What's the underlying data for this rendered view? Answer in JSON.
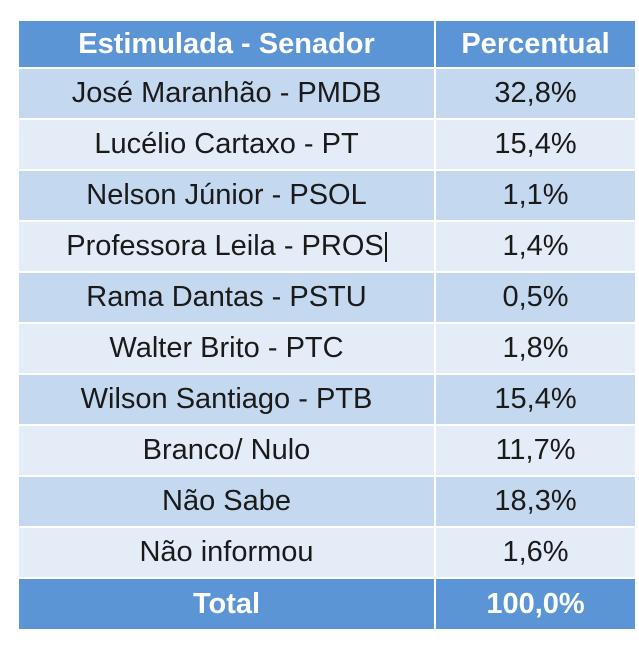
{
  "chart_data": {
    "type": "table",
    "columns": [
      "Estimulada - Senador",
      "Percentual"
    ],
    "rows": [
      {
        "candidate": "José Maranhão - PMDB",
        "percent": "32,8%",
        "value": 32.8
      },
      {
        "candidate": "Lucélio Cartaxo - PT",
        "percent": "15,4%",
        "value": 15.4
      },
      {
        "candidate": "Nelson Júnior - PSOL",
        "percent": "1,1%",
        "value": 1.1
      },
      {
        "candidate": "Professora Leila - PROS",
        "percent": "1,4%",
        "value": 1.4
      },
      {
        "candidate": "Rama Dantas - PSTU",
        "percent": "0,5%",
        "value": 0.5
      },
      {
        "candidate": "Walter Brito - PTC",
        "percent": "1,8%",
        "value": 1.8
      },
      {
        "candidate": "Wilson Santiago - PTB",
        "percent": "15,4%",
        "value": 15.4
      },
      {
        "candidate": "Branco/ Nulo",
        "percent": "11,7%",
        "value": 11.7
      },
      {
        "candidate": "Não Sabe",
        "percent": "18,3%",
        "value": 18.3
      },
      {
        "candidate": "Não informou",
        "percent": "1,6%",
        "value": 1.6
      }
    ],
    "total": {
      "label": "Total",
      "percent": "100,0%",
      "value": 100.0
    }
  },
  "colors": {
    "header_bg": "#5b95d5",
    "row_dark": "#c4d8ef",
    "row_light": "#e3ecf7",
    "header_text": "#ffffff",
    "body_text": "#1a1a1a"
  }
}
